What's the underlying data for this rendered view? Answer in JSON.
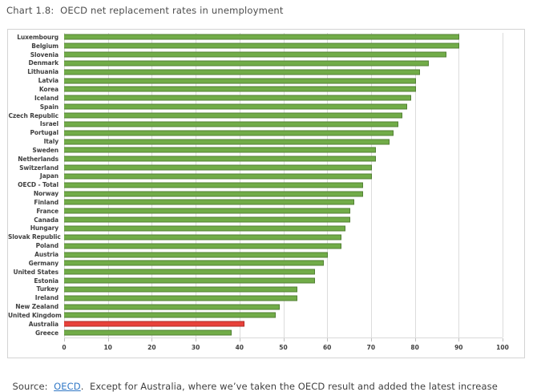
{
  "title": "Chart 1.8:  OECD net replacement rates in unemployment",
  "source": {
    "prefix": "Source:  ",
    "link_text": "OECD",
    "suffix": ".  Except for Australia, where we’ve taken the OECD result and added the latest increase"
  },
  "colors": {
    "bar_green": "#71ac48",
    "bar_green_border": "#538135",
    "bar_red": "#e8413a",
    "bar_red_border": "#ad2b25",
    "gridline": "#dcdcdc",
    "link_blue": "#3178c6",
    "title_gray": "#4d4d4d"
  },
  "chart_data": {
    "type": "bar",
    "orientation": "horizontal",
    "title": "Chart 1.8: OECD net replacement rates in unemployment",
    "xlabel": "",
    "ylabel": "",
    "xlim": [
      0,
      100
    ],
    "x_ticks": [
      0,
      10,
      20,
      30,
      40,
      50,
      60,
      70,
      80,
      90,
      100
    ],
    "grid": true,
    "categories": [
      "Luxembourg",
      "Belgium",
      "Slovenia",
      "Denmark",
      "Lithuania",
      "Latvia",
      "Korea",
      "Iceland",
      "Spain",
      "Czech Republic",
      "Israel",
      "Portugal",
      "Italy",
      "Sweden",
      "Netherlands",
      "Switzerland",
      "Japan",
      "OECD - Total",
      "Norway",
      "Finland",
      "France",
      "Canada",
      "Hungary",
      "Slovak Republic",
      "Poland",
      "Austria",
      "Germany",
      "United States",
      "Estonia",
      "Turkey",
      "Ireland",
      "New Zealand",
      "United Kingdom",
      "Australia",
      "Greece"
    ],
    "values": [
      90,
      90,
      87,
      83,
      81,
      80,
      80,
      79,
      78,
      77,
      76,
      75,
      74,
      71,
      71,
      70,
      70,
      68,
      68,
      66,
      65,
      65,
      64,
      63,
      63,
      60,
      59,
      57,
      57,
      53,
      53,
      49,
      48,
      41,
      38
    ],
    "highlight": {
      "category": "Australia",
      "color": "#e8413a"
    }
  }
}
